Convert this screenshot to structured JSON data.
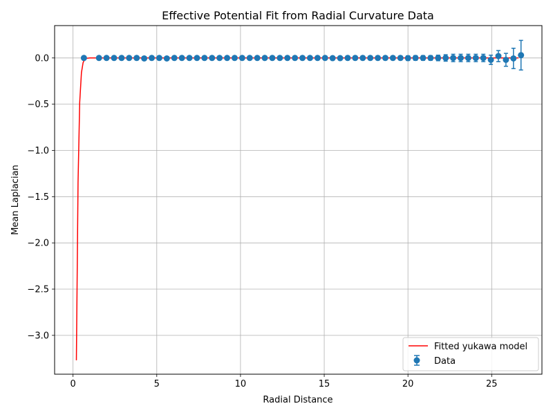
{
  "chart_data": {
    "type": "scatter",
    "title": "Effective Potential Fit from Radial Curvature Data",
    "xlabel": "Radial Distance",
    "ylabel": "Mean Laplacian",
    "xlim": [
      -1.1,
      28.0
    ],
    "ylim": [
      -3.42,
      0.35
    ],
    "xticks": [
      0,
      5,
      10,
      15,
      20,
      25
    ],
    "yticks": [
      0.0,
      -0.5,
      -1.0,
      -1.5,
      -2.0,
      -2.5,
      -3.0
    ],
    "xtick_labels": [
      "0",
      "5",
      "10",
      "15",
      "20",
      "25"
    ],
    "ytick_labels": [
      "0.0",
      "−0.5",
      "−1.0",
      "−1.5",
      "−2.0",
      "−2.5",
      "−3.0"
    ],
    "grid": true,
    "legend_position": "lower-right",
    "series": [
      {
        "name": "Fitted yukawa model",
        "kind": "line",
        "color": "#ff0000",
        "x": [
          0.2,
          0.3,
          0.4,
          0.5,
          0.6,
          0.7,
          0.8,
          1.0,
          1.5,
          3.0,
          6.0,
          10.0,
          15.0,
          20.0,
          26.6
        ],
        "y": [
          -3.27,
          -1.35,
          -0.48,
          -0.16,
          -0.05,
          -0.015,
          -0.004,
          0.0,
          0.0,
          0.0,
          0.0,
          0.0,
          0.0,
          0.0,
          0.0
        ]
      },
      {
        "name": "Data",
        "kind": "errorbar",
        "color": "#1f77b4",
        "x": [
          0.65,
          1.55,
          2.0,
          2.45,
          2.9,
          3.35,
          3.8,
          4.25,
          4.7,
          5.15,
          5.6,
          6.05,
          6.5,
          6.95,
          7.4,
          7.85,
          8.3,
          8.75,
          9.2,
          9.65,
          10.1,
          10.55,
          11.0,
          11.45,
          11.9,
          12.35,
          12.8,
          13.25,
          13.7,
          14.15,
          14.6,
          15.05,
          15.5,
          15.95,
          16.4,
          16.85,
          17.3,
          17.75,
          18.2,
          18.65,
          19.1,
          19.55,
          20.0,
          20.45,
          20.9,
          21.35,
          21.8,
          22.25,
          22.7,
          23.15,
          23.6,
          24.05,
          24.5,
          24.95,
          25.4,
          25.85,
          26.3,
          26.75
        ],
        "y": [
          0.0,
          0.0,
          0.0,
          0.0,
          0.0,
          0.0,
          0.0,
          -0.005,
          0.0,
          0.0,
          -0.005,
          0.0,
          0.0,
          0.0,
          0.0,
          0.0,
          0.0,
          0.0,
          0.0,
          0.0,
          0.0,
          0.0,
          0.0,
          0.0,
          0.0,
          0.0,
          0.0,
          0.0,
          0.0,
          0.0,
          0.0,
          0.0,
          -0.002,
          -0.002,
          0.0,
          0.0,
          0.0,
          0.0,
          0.0,
          0.0,
          0.0,
          0.0,
          -0.002,
          0.0,
          0.0,
          0.0,
          0.0,
          0.0,
          0.0,
          0.0,
          0.0,
          0.0,
          0.0,
          -0.02,
          0.02,
          -0.02,
          -0.005,
          0.03
        ],
        "err": [
          0.005,
          0.01,
          0.01,
          0.012,
          0.015,
          0.015,
          0.02,
          0.02,
          0.015,
          0.015,
          0.015,
          0.015,
          0.015,
          0.015,
          0.015,
          0.015,
          0.015,
          0.015,
          0.015,
          0.015,
          0.015,
          0.015,
          0.015,
          0.015,
          0.015,
          0.015,
          0.015,
          0.015,
          0.015,
          0.015,
          0.015,
          0.015,
          0.018,
          0.018,
          0.02,
          0.02,
          0.02,
          0.02,
          0.02,
          0.02,
          0.02,
          0.02,
          0.025,
          0.025,
          0.025,
          0.025,
          0.03,
          0.035,
          0.04,
          0.04,
          0.04,
          0.04,
          0.04,
          0.05,
          0.06,
          0.07,
          0.11,
          0.16
        ]
      }
    ]
  }
}
